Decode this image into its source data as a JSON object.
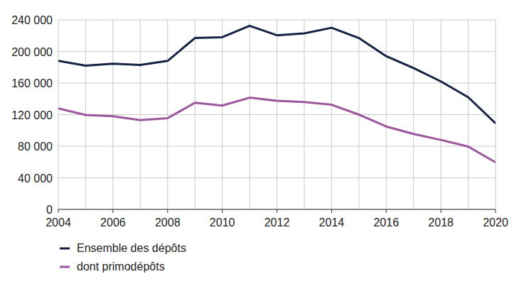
{
  "chart_data": {
    "type": "line",
    "x": [
      2004,
      2005,
      2006,
      2007,
      2008,
      2009,
      2010,
      2011,
      2012,
      2013,
      2014,
      2015,
      2016,
      2017,
      2018,
      2019,
      2020
    ],
    "series": [
      {
        "name": "Ensemble des dépôts",
        "color": "#142241",
        "values": [
          188000,
          182000,
          184500,
          183000,
          188000,
          217000,
          218000,
          232500,
          220500,
          223000,
          230000,
          217000,
          194000,
          179000,
          162000,
          142000,
          109000
        ]
      },
      {
        "name": "dont primodépôts",
        "color": "#9b569d",
        "values": [
          128000,
          119500,
          118000,
          113000,
          115500,
          135000,
          131500,
          141500,
          137500,
          136000,
          132500,
          120000,
          105000,
          95500,
          88000,
          79500,
          59500
        ]
      }
    ],
    "xlim": [
      2004,
      2020
    ],
    "xticks": [
      2004,
      2006,
      2008,
      2010,
      2012,
      2014,
      2016,
      2018,
      2020
    ],
    "ylim": [
      0,
      240000
    ],
    "yticks": [
      0,
      {
        "value": 40000,
        "label": "40 000"
      },
      {
        "value": 80000,
        "label": "80 000"
      },
      {
        "value": 120000,
        "label": "120 000"
      },
      {
        "value": 160000,
        "label": "160 000"
      },
      {
        "value": 200000,
        "label": "200 000"
      },
      {
        "value": 240000,
        "label": "240 000"
      }
    ],
    "grid": true,
    "legend": "bottom"
  }
}
